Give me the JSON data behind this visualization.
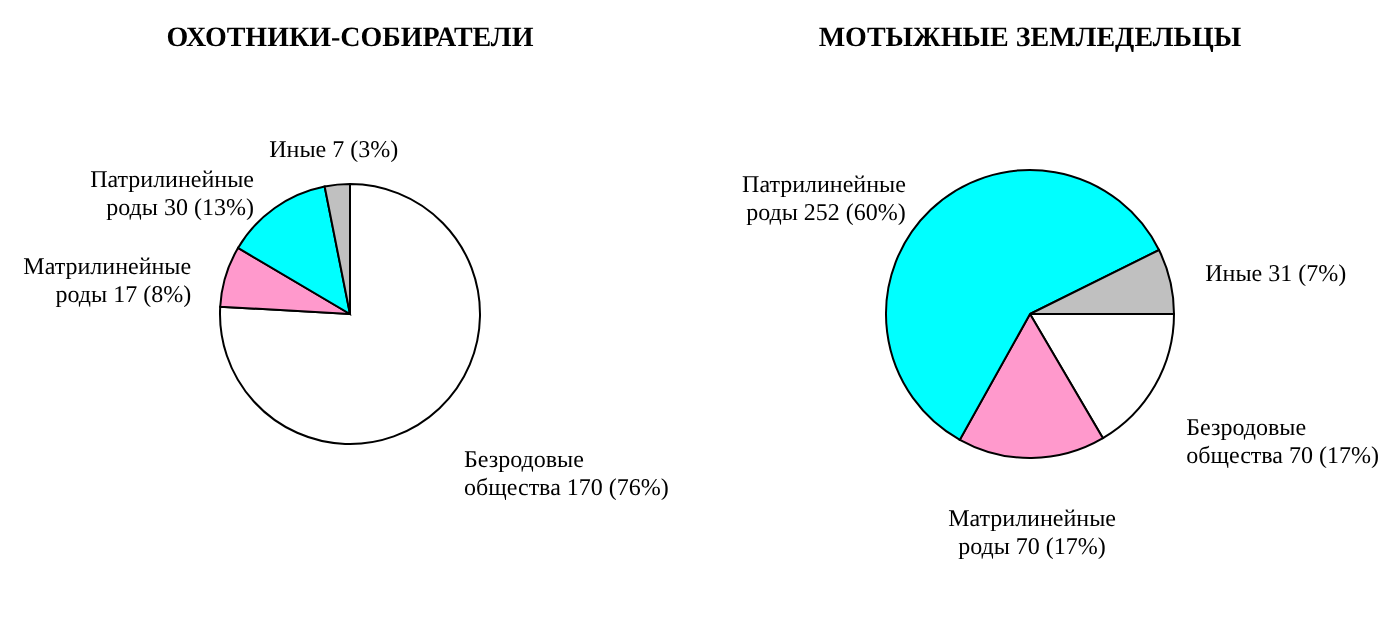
{
  "chart_data": [
    {
      "type": "pie",
      "title": "ОХОТНИКИ-СОБИРАТЕЛИ",
      "categories": [
        "Безродовые общества",
        "Матрилинейные роды",
        "Патрилинейные роды",
        "Иные"
      ],
      "values": [
        170,
        17,
        30,
        7
      ],
      "colors": [
        "#ffffff",
        "#ff99cc",
        "#00ffff",
        "#c0c0c0"
      ],
      "value_labels": [
        "170 (76%)",
        "17 (8%)",
        "30 (13%)",
        "7 (3%)"
      ]
    },
    {
      "type": "pie",
      "title": "МОТЫЖНЫЕ ЗЕМЛЕДЕЛЬЦЫ",
      "categories": [
        "Безродовые общества",
        "Матрилинейные роды",
        "Патрилинейные роды",
        "Иные"
      ],
      "values": [
        70,
        70,
        252,
        31
      ],
      "colors": [
        "#ffffff",
        "#ff99cc",
        "#00ffff",
        "#c0c0c0"
      ],
      "value_labels": [
        "70 (17%)",
        "70 (17%)",
        "252 (60%)",
        "31 (7%)"
      ]
    }
  ]
}
